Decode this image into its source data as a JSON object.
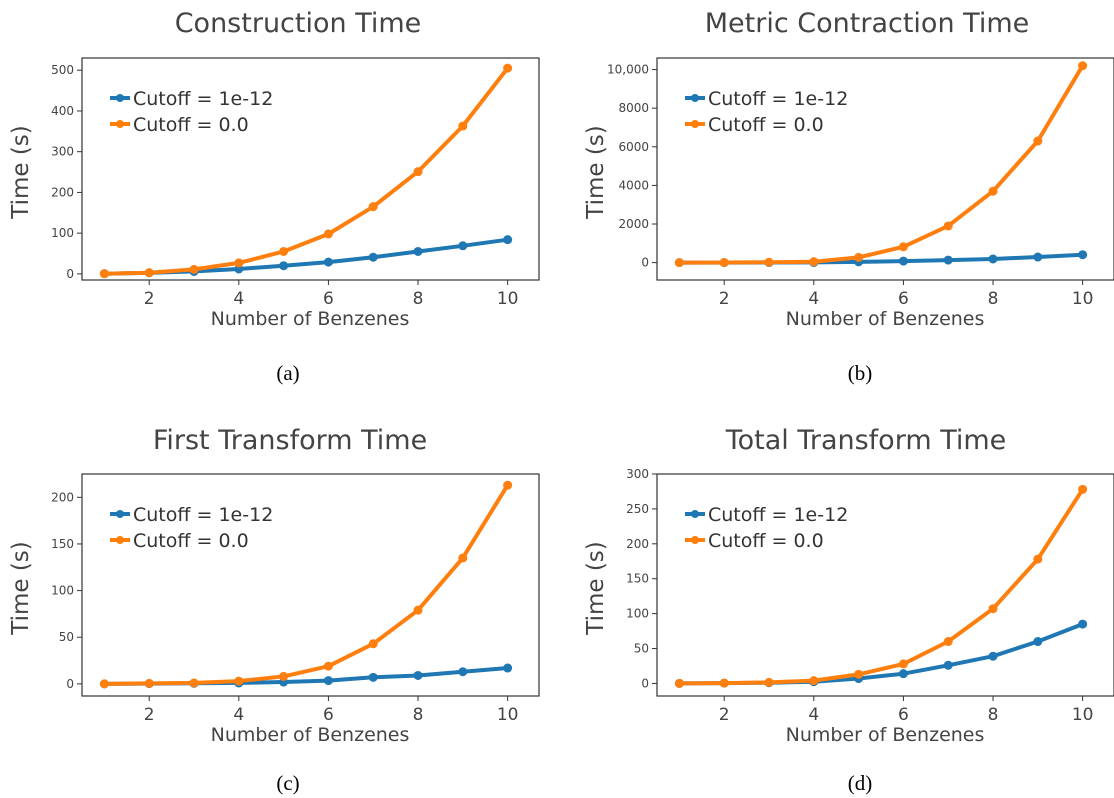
{
  "colors": {
    "series1": "#1f77b4",
    "series2": "#ff7f0e",
    "frame": "#333333",
    "text": "#444444"
  },
  "chart_data": [
    {
      "type": "line",
      "title": "Construction Time",
      "xlabel": "Number of Benzenes",
      "ylabel": "Time (s)",
      "caption": "(a)",
      "x": [
        1,
        2,
        3,
        4,
        5,
        6,
        7,
        8,
        9,
        10
      ],
      "xticks": [
        2,
        4,
        6,
        8,
        10
      ],
      "xlim": [
        0.5,
        10.7
      ],
      "ylim": [
        -15,
        530
      ],
      "yticks": [
        0,
        100,
        200,
        300,
        400,
        500
      ],
      "ytick_labels": [
        "0",
        "100",
        "200",
        "300",
        "400",
        "500"
      ],
      "legend_position": "top-left",
      "grid": false,
      "series": [
        {
          "name": "Cutoff = 1e-12",
          "color": "#1f77b4",
          "values": [
            0.5,
            2.5,
            6,
            12,
            20,
            29,
            41,
            55,
            69,
            84
          ]
        },
        {
          "name": "Cutoff = 0.0",
          "color": "#ff7f0e",
          "values": [
            0.5,
            3,
            11,
            27,
            55,
            98,
            165,
            251,
            363,
            505
          ]
        }
      ]
    },
    {
      "type": "line",
      "title": "Metric Contraction Time",
      "xlabel": "Number of Benzenes",
      "ylabel": "Time (s)",
      "caption": "(b)",
      "x": [
        1,
        2,
        3,
        4,
        5,
        6,
        7,
        8,
        9,
        10
      ],
      "xticks": [
        2,
        4,
        6,
        8,
        10
      ],
      "xlim": [
        0.5,
        10.7
      ],
      "ylim": [
        -900,
        10600
      ],
      "yticks": [
        0,
        2000,
        4000,
        6000,
        8000,
        10000
      ],
      "ytick_labels": [
        "0",
        "2000",
        "4000",
        "6000",
        "8000",
        "10,000"
      ],
      "legend_position": "top-left",
      "grid": false,
      "series": [
        {
          "name": "Cutoff = 1e-12",
          "color": "#1f77b4",
          "values": [
            0,
            2,
            5,
            12,
            40,
            80,
            130,
            190,
            290,
            410
          ]
        },
        {
          "name": "Cutoff = 0.0",
          "color": "#ff7f0e",
          "values": [
            0,
            5,
            20,
            50,
            270,
            820,
            1900,
            3700,
            6300,
            10200
          ]
        }
      ]
    },
    {
      "type": "line",
      "title": "First Transform Time",
      "xlabel": "Number of Benzenes",
      "ylabel": "Time (s)",
      "caption": "(c)",
      "x": [
        1,
        2,
        3,
        4,
        5,
        6,
        7,
        8,
        9,
        10
      ],
      "xticks": [
        2,
        4,
        6,
        8,
        10
      ],
      "xlim": [
        0.5,
        10.7
      ],
      "ylim": [
        -13,
        225
      ],
      "yticks": [
        0,
        50,
        100,
        150,
        200
      ],
      "ytick_labels": [
        "0",
        "50",
        "100",
        "150",
        "200"
      ],
      "legend_position": "top-left",
      "grid": false,
      "series": [
        {
          "name": "Cutoff = 1e-12",
          "color": "#1f77b4",
          "values": [
            0,
            0.3,
            0.6,
            1,
            2,
            3.5,
            7,
            9,
            13,
            17
          ]
        },
        {
          "name": "Cutoff = 0.0",
          "color": "#ff7f0e",
          "values": [
            0,
            0.5,
            1,
            3,
            8,
            19,
            43,
            79,
            135,
            213
          ]
        }
      ]
    },
    {
      "type": "line",
      "title": "Total Transform Time",
      "xlabel": "Number of Benzenes",
      "ylabel": "Time (s)",
      "caption": "(d)",
      "x": [
        1,
        2,
        3,
        4,
        5,
        6,
        7,
        8,
        9,
        10
      ],
      "xticks": [
        2,
        4,
        6,
        8,
        10
      ],
      "xlim": [
        0.5,
        10.7
      ],
      "ylim": [
        -18,
        300
      ],
      "yticks": [
        0,
        50,
        100,
        150,
        200,
        250,
        300
      ],
      "ytick_labels": [
        "0",
        "50",
        "100",
        "150",
        "200",
        "250",
        "300"
      ],
      "legend_position": "top-left",
      "grid": false,
      "series": [
        {
          "name": "Cutoff = 1e-12",
          "color": "#1f77b4",
          "values": [
            0,
            0.5,
            1,
            2.5,
            7,
            14,
            26,
            39,
            60,
            85
          ]
        },
        {
          "name": "Cutoff = 0.0",
          "color": "#ff7f0e",
          "values": [
            0,
            0.5,
            1.5,
            4,
            13,
            28,
            60,
            107,
            178,
            278
          ]
        }
      ]
    }
  ]
}
